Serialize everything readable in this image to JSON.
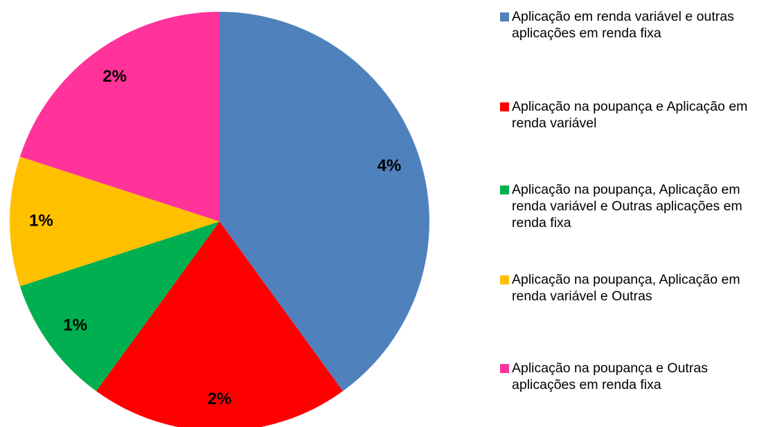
{
  "chart_data": {
    "type": "pie",
    "series": [
      {
        "name": "Aplicação em renda variável e outras aplicações em renda fixa",
        "color": "#4f81bd"
      },
      {
        "name": "Aplicação na poupança e Aplicação em renda variável",
        "color": "#ff0000"
      },
      {
        "name": "Aplicação na poupança, Aplicação em renda variável e Outras aplicações em renda fixa",
        "color": "#00b050"
      },
      {
        "name": "Aplicação na poupança, Aplicação em renda variável e Outras",
        "color": "#ffc000"
      },
      {
        "name": "Aplicação na poupança e Outras aplicações em renda fixa",
        "color": "#ff3399"
      }
    ],
    "values": [
      4,
      2,
      1,
      1,
      2
    ],
    "value_labels": [
      "4%",
      "2%",
      "1%",
      "1%",
      "2%"
    ],
    "legend": "right"
  }
}
